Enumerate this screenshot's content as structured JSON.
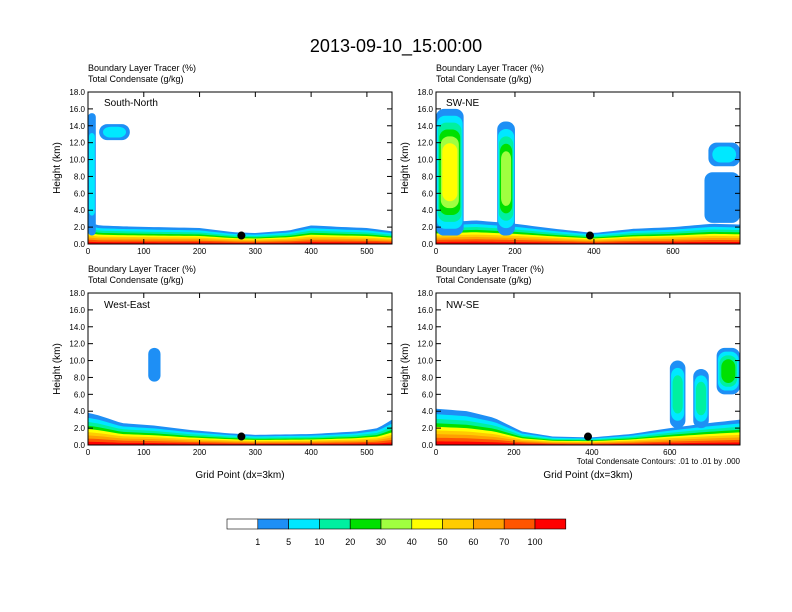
{
  "title": "2013-09-10_15:00:00",
  "panel_header_line1": "Boundary Layer Tracer   (%)",
  "panel_header_line2": "Total Condensate   (g/kg)",
  "contour_note": "Total Condensate Contours: .01 to .01 by .000",
  "colors": {
    "bins": [
      "#ffffff",
      "#1e8ff5",
      "#00e8ff",
      "#00f0a0",
      "#00e000",
      "#a0ff40",
      "#ffff00",
      "#ffcc00",
      "#ffa000",
      "#ff5500",
      "#ff0000"
    ],
    "axis": "#000000"
  },
  "colorbar": {
    "labels": [
      "1",
      "5",
      "10",
      "20",
      "30",
      "40",
      "50",
      "60",
      "70",
      "100"
    ]
  },
  "chart_data": [
    {
      "type": "heatmap",
      "panel": "South-North",
      "xlabel": "",
      "ylabel": "Height (km)",
      "xlim": [
        0,
        545
      ],
      "ylim": [
        0,
        18
      ],
      "xticks": [
        0,
        100,
        200,
        300,
        400,
        500
      ],
      "yticks": [
        0,
        2,
        4,
        6,
        8,
        10,
        12,
        14,
        16,
        18
      ],
      "ytick_labels": [
        "0.0",
        "2.0",
        "4.0",
        "6.0",
        "8.0",
        "10.0",
        "12.0",
        "14.0",
        "16.0",
        "18.0"
      ],
      "marker_x": 275,
      "marker_y": 1.0,
      "boundary_layer_top": [
        [
          0,
          2.6
        ],
        [
          20,
          2.2
        ],
        [
          60,
          2.1
        ],
        [
          120,
          2.0
        ],
        [
          200,
          1.9
        ],
        [
          260,
          1.4
        ],
        [
          300,
          1.3
        ],
        [
          360,
          1.6
        ],
        [
          400,
          2.2
        ],
        [
          460,
          2.0
        ],
        [
          500,
          1.9
        ],
        [
          545,
          1.5
        ]
      ],
      "features": [
        {
          "x0": 0,
          "x1": 14,
          "y0": 1,
          "y1": 15.5,
          "level": 2
        },
        {
          "x0": 20,
          "x1": 75,
          "y0": 12.3,
          "y1": 14.2,
          "level": 2
        }
      ]
    },
    {
      "type": "heatmap",
      "panel": "SW-NE",
      "xlabel": "",
      "ylabel": "Height (km)",
      "xlim": [
        0,
        770
      ],
      "ylim": [
        0,
        18
      ],
      "xticks": [
        0,
        200,
        400,
        600
      ],
      "yticks": [
        0,
        2,
        4,
        6,
        8,
        10,
        12,
        14,
        16,
        18
      ],
      "ytick_labels": [
        "0.0",
        "2.0",
        "4.0",
        "6.0",
        "8.0",
        "10.0",
        "12.0",
        "14.0",
        "16.0",
        "18.0"
      ],
      "marker_x": 390,
      "marker_y": 1.0,
      "boundary_layer_top": [
        [
          0,
          2.5
        ],
        [
          100,
          2.8
        ],
        [
          200,
          2.4
        ],
        [
          300,
          1.8
        ],
        [
          400,
          1.3
        ],
        [
          500,
          1.8
        ],
        [
          600,
          2.0
        ],
        [
          700,
          2.4
        ],
        [
          770,
          2.3
        ]
      ],
      "features": [
        {
          "x0": 0,
          "x1": 70,
          "y0": 1,
          "y1": 16,
          "level": 6
        },
        {
          "x0": 155,
          "x1": 200,
          "y0": 1,
          "y1": 14.5,
          "level": 5
        },
        {
          "x0": 680,
          "x1": 770,
          "y0": 2.5,
          "y1": 8.5,
          "level": 1
        },
        {
          "x0": 690,
          "x1": 770,
          "y0": 9.2,
          "y1": 12,
          "level": 2
        }
      ]
    },
    {
      "type": "heatmap",
      "panel": "West-East",
      "xlabel": "Grid Point (dx=3km)",
      "ylabel": "Height (km)",
      "xlim": [
        0,
        545
      ],
      "ylim": [
        0,
        18
      ],
      "xticks": [
        0,
        100,
        200,
        300,
        400,
        500
      ],
      "yticks": [
        0,
        2,
        4,
        6,
        8,
        10,
        12,
        14,
        16,
        18
      ],
      "ytick_labels": [
        "0.0",
        "2.0",
        "4.0",
        "6.0",
        "8.0",
        "10.0",
        "12.0",
        "14.0",
        "16.0",
        "18.0"
      ],
      "marker_x": 275,
      "marker_y": 1.0,
      "boundary_layer_top": [
        [
          0,
          3.8
        ],
        [
          20,
          3.5
        ],
        [
          60,
          2.6
        ],
        [
          120,
          2.3
        ],
        [
          180,
          1.8
        ],
        [
          250,
          1.4
        ],
        [
          300,
          1.2
        ],
        [
          400,
          1.3
        ],
        [
          480,
          1.6
        ],
        [
          520,
          2.0
        ],
        [
          545,
          3.0
        ]
      ],
      "features": [
        {
          "x0": 108,
          "x1": 130,
          "y0": 7.5,
          "y1": 11.5,
          "level": 1
        }
      ]
    },
    {
      "type": "heatmap",
      "panel": "NW-SE",
      "xlabel": "Grid Point (dx=3km)",
      "ylabel": "Height (km)",
      "xlim": [
        0,
        780
      ],
      "ylim": [
        0,
        18
      ],
      "xticks": [
        0,
        200,
        400,
        600
      ],
      "yticks": [
        0,
        2,
        4,
        6,
        8,
        10,
        12,
        14,
        16,
        18
      ],
      "ytick_labels": [
        "0.0",
        "2.0",
        "4.0",
        "6.0",
        "8.0",
        "10.0",
        "12.0",
        "14.0",
        "16.0",
        "18.0"
      ],
      "marker_x": 390,
      "marker_y": 1.0,
      "boundary_layer_top": [
        [
          0,
          4.3
        ],
        [
          80,
          4.0
        ],
        [
          150,
          3.2
        ],
        [
          220,
          1.6
        ],
        [
          300,
          1.0
        ],
        [
          400,
          0.9
        ],
        [
          500,
          1.3
        ],
        [
          600,
          2.0
        ],
        [
          700,
          2.6
        ],
        [
          780,
          3.0
        ]
      ],
      "features": [
        {
          "x0": 600,
          "x1": 640,
          "y0": 2,
          "y1": 10,
          "level": 3
        },
        {
          "x0": 660,
          "x1": 700,
          "y0": 2,
          "y1": 9,
          "level": 3
        },
        {
          "x0": 720,
          "x1": 780,
          "y0": 6,
          "y1": 11.5,
          "level": 4
        }
      ]
    }
  ]
}
